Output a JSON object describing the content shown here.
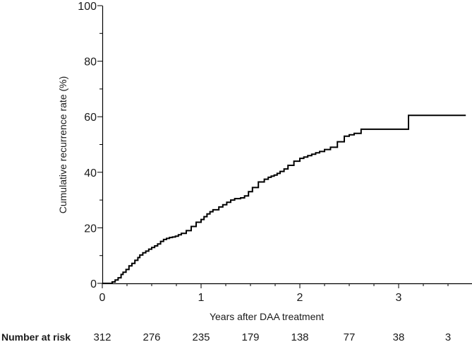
{
  "chart_data": {
    "type": "line",
    "step": true,
    "title": "",
    "xlabel": "Years after DAA treatment",
    "ylabel": "Cumulative recurrence rate (%)",
    "xlim": [
      0,
      3.72
    ],
    "ylim": [
      0,
      100
    ],
    "xticks": [
      0,
      1,
      2,
      3
    ],
    "yticks": [
      0,
      20,
      40,
      60,
      80,
      100
    ],
    "x_minor_step": 0.25,
    "y_minor_step": 10,
    "grid": false,
    "line_color": "#000000",
    "series": [
      {
        "x": [
          0,
          0.1,
          0.13,
          0.16,
          0.19,
          0.21,
          0.24,
          0.27,
          0.3,
          0.33,
          0.36,
          0.38,
          0.41,
          0.44,
          0.47,
          0.5,
          0.53,
          0.56,
          0.59,
          0.62,
          0.65,
          0.68,
          0.71,
          0.74,
          0.77,
          0.8,
          0.85,
          0.9,
          0.95,
          1.0,
          1.03,
          1.06,
          1.09,
          1.12,
          1.18,
          1.22,
          1.26,
          1.3,
          1.34,
          1.4,
          1.44,
          1.48,
          1.52,
          1.58,
          1.64,
          1.68,
          1.71,
          1.74,
          1.77,
          1.8,
          1.84,
          1.88,
          1.94,
          2.0,
          2.04,
          2.08,
          2.12,
          2.16,
          2.2,
          2.25,
          2.31,
          2.38,
          2.45,
          2.5,
          2.55,
          2.62,
          2.67,
          2.72,
          2.78,
          2.87,
          2.96,
          3.1,
          3.2,
          3.33,
          3.5,
          3.68
        ],
        "values": [
          0,
          0.5,
          1.2,
          2.0,
          3.2,
          4.0,
          5.0,
          6.3,
          7.2,
          8.3,
          9.3,
          10.2,
          11.0,
          11.6,
          12.3,
          12.9,
          13.5,
          14.2,
          15.1,
          15.8,
          16.2,
          16.5,
          16.7,
          17.0,
          17.5,
          18.0,
          19.0,
          20.5,
          22.0,
          23.0,
          24.0,
          25.0,
          25.8,
          26.5,
          27.5,
          28.3,
          29.2,
          30.0,
          30.5,
          30.8,
          31.5,
          33.0,
          34.5,
          36.5,
          37.5,
          38.2,
          38.6,
          39.0,
          39.6,
          40.3,
          41.2,
          42.5,
          44.0,
          45.0,
          45.5,
          46.0,
          46.5,
          47.0,
          47.5,
          48.2,
          49.0,
          51.0,
          53.0,
          53.5,
          54.0,
          55.5,
          55.5,
          55.5,
          55.5,
          55.5,
          55.5,
          60.5,
          60.5,
          60.5,
          60.5,
          60.5
        ]
      }
    ],
    "risk_table": {
      "label": "Number at risk",
      "values": [
        "312",
        "276",
        "235",
        "179",
        "138",
        "77",
        "38",
        "3"
      ]
    }
  }
}
